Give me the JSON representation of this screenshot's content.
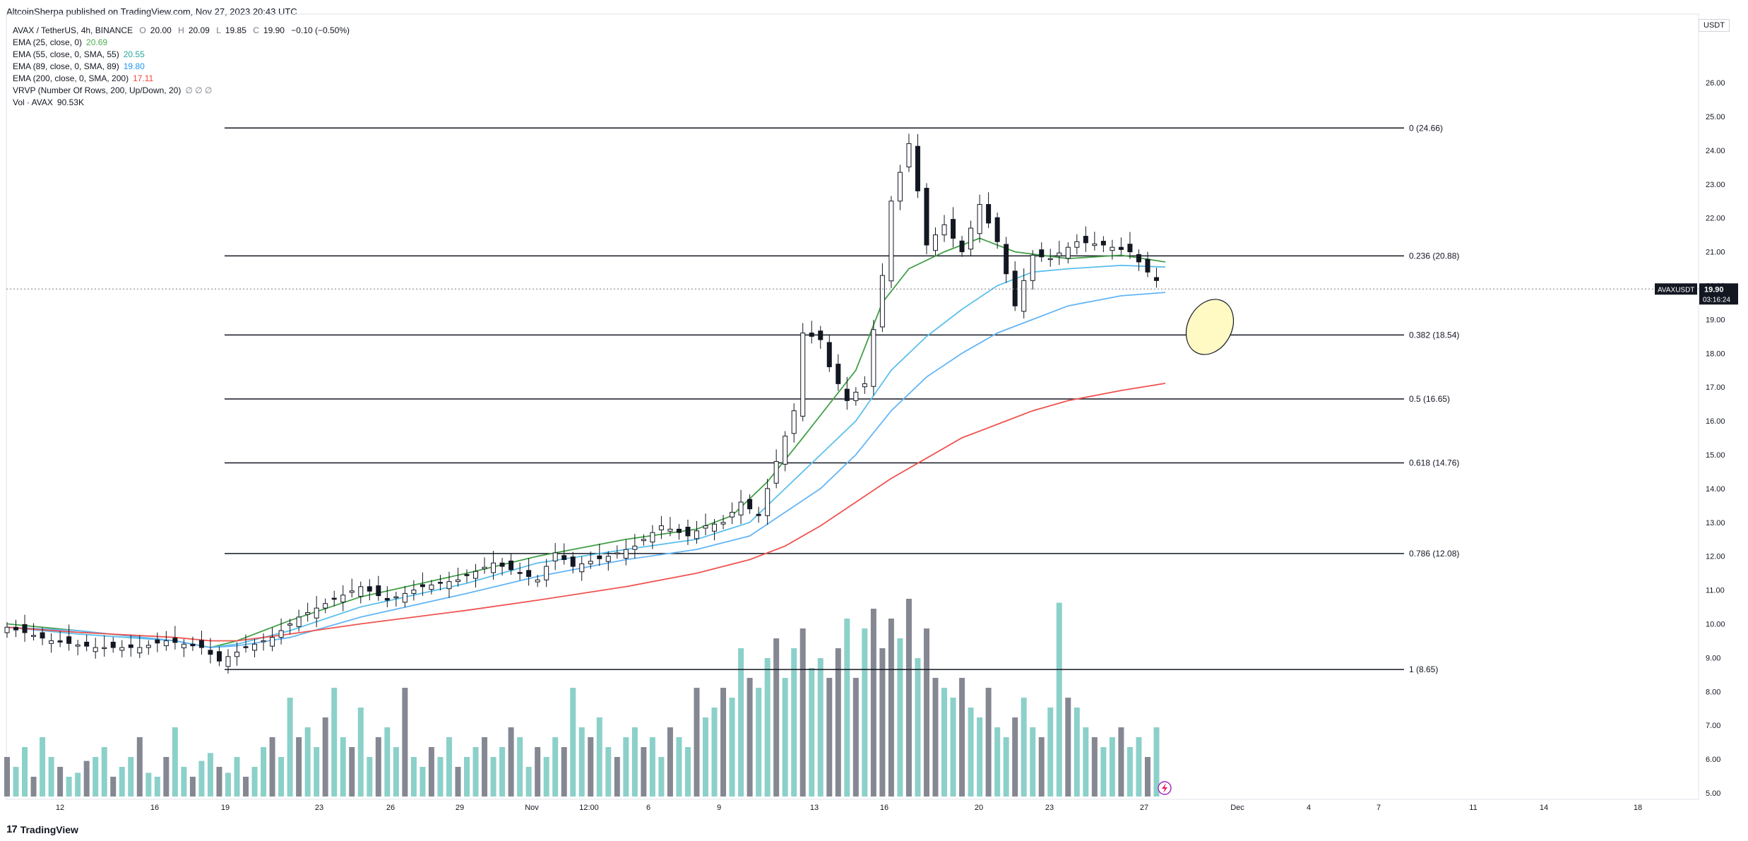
{
  "header": {
    "publisher_line": "AltcoinSherpa published on TradingView.com, Nov 27, 2023 20:43 UTC"
  },
  "legend": {
    "symbol": "AVAX / TetherUS, 4h, BINANCE",
    "ohlc": {
      "o_label": "O",
      "o": "20.00",
      "h_label": "H",
      "h": "20.09",
      "l_label": "L",
      "l": "19.85",
      "c_label": "C",
      "c": "19.90",
      "change": "−0.10 (−0.50%)"
    },
    "indicators": [
      {
        "label": "EMA (25, close, 0)",
        "value": "20.69",
        "color": "#4caf50"
      },
      {
        "label": "EMA (55, close, 0, SMA, 55)",
        "value": "20.55",
        "color": "#26a69a"
      },
      {
        "label": "EMA (89, close, 0, SMA, 89)",
        "value": "19.80",
        "color": "#2196f3"
      },
      {
        "label": "EMA (200, close, 0, SMA, 200)",
        "value": "17.11",
        "color": "#f44336"
      },
      {
        "label": "VRVP (Number Of Rows, 200, Up/Down, 20)",
        "value": "∅ ∅ ∅",
        "color": "#787b86"
      },
      {
        "label": "Vol · AVAX",
        "value": "90.53K",
        "color": "#131722"
      }
    ]
  },
  "quote_currency": "USDT",
  "price_tag": {
    "symbol": "AVAXUSDT",
    "price": "19.90",
    "countdown": "03:16:24"
  },
  "footer": {
    "brand": "TradingView",
    "logo_glyph": "17"
  },
  "colors": {
    "ema25": "#43a047",
    "ema55": "#5bc0eb",
    "ema89": "#64b5f6",
    "ema200": "#ef5350",
    "vol_up": "#80cbc4",
    "vol_down": "#787b86",
    "fib_line": "#131722",
    "ellipse_fill": "#fff9c4"
  },
  "chart_data": {
    "type": "candlestick",
    "y_axis": {
      "min": 5,
      "max": 26,
      "ticks": [
        "5.00",
        "6.00",
        "7.00",
        "8.00",
        "9.00",
        "10.00",
        "11.00",
        "12.00",
        "13.00",
        "14.00",
        "15.00",
        "16.00",
        "17.00",
        "18.00",
        "19.00",
        "20.00",
        "21.00",
        "22.00",
        "23.00",
        "24.00",
        "25.00",
        "26.00"
      ]
    },
    "x_axis": {
      "ticks": [
        "12",
        "16",
        "19",
        "23",
        "26",
        "29",
        "Nov",
        "12:00",
        "6",
        "9",
        "13",
        "16",
        "20",
        "23",
        "27",
        "Dec",
        "4",
        "7",
        "11",
        "14",
        "18"
      ]
    },
    "fib_levels": [
      {
        "ratio": "0",
        "price": 24.66,
        "label": "0 (24.66)"
      },
      {
        "ratio": "0.236",
        "price": 20.88,
        "label": "0.236 (20.88)"
      },
      {
        "ratio": "0.382",
        "price": 18.54,
        "label": "0.382 (18.54)"
      },
      {
        "ratio": "0.5",
        "price": 16.65,
        "label": "0.5 (16.65)"
      },
      {
        "ratio": "0.618",
        "price": 14.76,
        "label": "0.618 (14.76)"
      },
      {
        "ratio": "0.786",
        "price": 12.08,
        "label": "0.786 (12.08)"
      },
      {
        "ratio": "1",
        "price": 8.65,
        "label": "1 (8.65)"
      }
    ],
    "series": [
      {
        "name": "EMA (25, close, 0)",
        "points": [
          [
            0,
            10.0
          ],
          [
            8,
            9.8
          ],
          [
            19,
            9.5
          ],
          [
            23,
            9.3
          ],
          [
            26,
            9.5
          ],
          [
            32,
            10.1
          ],
          [
            40,
            10.8
          ],
          [
            52,
            11.5
          ],
          [
            60,
            12.0
          ],
          [
            70,
            12.5
          ],
          [
            78,
            12.8
          ],
          [
            82,
            13.2
          ],
          [
            86,
            14.2
          ],
          [
            90,
            15.5
          ],
          [
            93,
            16.5
          ],
          [
            96,
            17.5
          ],
          [
            99,
            19.5
          ],
          [
            102,
            20.5
          ],
          [
            106,
            21.0
          ],
          [
            110,
            21.4
          ],
          [
            114,
            21.0
          ],
          [
            120,
            20.8
          ],
          [
            126,
            20.9
          ],
          [
            131,
            20.7
          ]
        ]
      },
      {
        "name": "EMA (55, close, 0, SMA, 55)",
        "points": [
          [
            0,
            9.9
          ],
          [
            8,
            9.7
          ],
          [
            19,
            9.5
          ],
          [
            23,
            9.3
          ],
          [
            26,
            9.4
          ],
          [
            32,
            9.8
          ],
          [
            40,
            10.5
          ],
          [
            52,
            11.2
          ],
          [
            60,
            11.8
          ],
          [
            70,
            12.2
          ],
          [
            78,
            12.5
          ],
          [
            84,
            13.0
          ],
          [
            88,
            14.0
          ],
          [
            92,
            15.0
          ],
          [
            96,
            16.0
          ],
          [
            100,
            17.5
          ],
          [
            104,
            18.5
          ],
          [
            108,
            19.3
          ],
          [
            112,
            20.0
          ],
          [
            116,
            20.4
          ],
          [
            120,
            20.5
          ],
          [
            126,
            20.6
          ],
          [
            131,
            20.55
          ]
        ]
      },
      {
        "name": "EMA (89, close, 0, SMA, 89)",
        "points": [
          [
            0,
            9.9
          ],
          [
            8,
            9.8
          ],
          [
            19,
            9.5
          ],
          [
            23,
            9.3
          ],
          [
            26,
            9.35
          ],
          [
            32,
            9.6
          ],
          [
            40,
            10.2
          ],
          [
            52,
            10.9
          ],
          [
            60,
            11.4
          ],
          [
            70,
            11.9
          ],
          [
            78,
            12.2
          ],
          [
            84,
            12.6
          ],
          [
            88,
            13.3
          ],
          [
            92,
            14.0
          ],
          [
            96,
            15.0
          ],
          [
            100,
            16.3
          ],
          [
            104,
            17.3
          ],
          [
            108,
            18.0
          ],
          [
            112,
            18.6
          ],
          [
            116,
            19.0
          ],
          [
            120,
            19.4
          ],
          [
            126,
            19.7
          ],
          [
            131,
            19.8
          ]
        ]
      },
      {
        "name": "EMA (200, close, 0, SMA, 200)",
        "points": [
          [
            0,
            9.9
          ],
          [
            8,
            9.75
          ],
          [
            19,
            9.6
          ],
          [
            23,
            9.5
          ],
          [
            26,
            9.5
          ],
          [
            32,
            9.7
          ],
          [
            40,
            10.0
          ],
          [
            52,
            10.4
          ],
          [
            60,
            10.7
          ],
          [
            70,
            11.1
          ],
          [
            78,
            11.5
          ],
          [
            84,
            11.9
          ],
          [
            88,
            12.3
          ],
          [
            92,
            12.9
          ],
          [
            96,
            13.6
          ],
          [
            100,
            14.3
          ],
          [
            104,
            14.9
          ],
          [
            108,
            15.5
          ],
          [
            112,
            15.9
          ],
          [
            116,
            16.3
          ],
          [
            120,
            16.6
          ],
          [
            126,
            16.9
          ],
          [
            131,
            17.11
          ]
        ]
      }
    ],
    "candles_note": "~131 four-hour candles from Oct 10 to Nov 27, 2023",
    "price_path": [
      [
        0,
        9.9
      ],
      [
        5,
        9.5
      ],
      [
        10,
        9.3
      ],
      [
        15,
        9.3
      ],
      [
        18,
        9.5
      ],
      [
        22,
        9.3
      ],
      [
        24,
        8.9
      ],
      [
        27,
        9.3
      ],
      [
        30,
        9.6
      ],
      [
        33,
        10.2
      ],
      [
        36,
        10.6
      ],
      [
        40,
        11.1
      ],
      [
        43,
        10.7
      ],
      [
        47,
        11.1
      ],
      [
        51,
        11.3
      ],
      [
        55,
        11.8
      ],
      [
        58,
        11.5
      ],
      [
        60,
        11.3
      ],
      [
        62,
        12.1
      ],
      [
        64,
        11.7
      ],
      [
        68,
        12.0
      ],
      [
        71,
        12.3
      ],
      [
        74,
        12.9
      ],
      [
        77,
        12.6
      ],
      [
        79,
        12.9
      ],
      [
        81,
        13.0
      ],
      [
        83,
        13.6
      ],
      [
        85,
        13.2
      ],
      [
        87,
        14.8
      ],
      [
        89,
        16.3
      ],
      [
        90,
        18.6
      ],
      [
        92,
        18.4
      ],
      [
        93,
        17.6
      ],
      [
        95,
        16.6
      ],
      [
        97,
        17.1
      ],
      [
        99,
        20.3
      ],
      [
        100,
        22.5
      ],
      [
        102,
        24.2
      ],
      [
        103,
        22.8
      ],
      [
        104,
        21.2
      ],
      [
        106,
        21.8
      ],
      [
        108,
        21.0
      ],
      [
        110,
        22.4
      ],
      [
        112,
        21.3
      ],
      [
        114,
        19.4
      ],
      [
        116,
        20.9
      ],
      [
        118,
        20.8
      ],
      [
        121,
        21.3
      ],
      [
        124,
        21.2
      ],
      [
        127,
        21.0
      ],
      [
        129,
        20.4
      ],
      [
        131,
        19.9
      ]
    ],
    "volume_heights": [
      0.2,
      0.15,
      0.25,
      0.1,
      0.3,
      0.2,
      0.15,
      0.1,
      0.12,
      0.18,
      0.2,
      0.25,
      0.1,
      0.15,
      0.2,
      0.3,
      0.12,
      0.1,
      0.2,
      0.35,
      0.15,
      0.1,
      0.18,
      0.22,
      0.15,
      0.12,
      0.2,
      0.1,
      0.15,
      0.25,
      0.3,
      0.2,
      0.5,
      0.3,
      0.35,
      0.25,
      0.4,
      0.55,
      0.3,
      0.25,
      0.45,
      0.2,
      0.3,
      0.35,
      0.25,
      0.55,
      0.2,
      0.15,
      0.25,
      0.2,
      0.3,
      0.15,
      0.2,
      0.25,
      0.3,
      0.2,
      0.25,
      0.35,
      0.3,
      0.15,
      0.25,
      0.2,
      0.3,
      0.25,
      0.55,
      0.35,
      0.3,
      0.4,
      0.25,
      0.2,
      0.3,
      0.35,
      0.25,
      0.3,
      0.2,
      0.35,
      0.3,
      0.25,
      0.55,
      0.4,
      0.45,
      0.55,
      0.5,
      0.75,
      0.6,
      0.55,
      0.7,
      0.8,
      0.6,
      0.75,
      0.85,
      0.65,
      0.7,
      0.6,
      0.75,
      0.9,
      0.6,
      0.85,
      0.95,
      0.75,
      0.9,
      0.8,
      1.0,
      0.7,
      0.85,
      0.6,
      0.55,
      0.5,
      0.6,
      0.45,
      0.4,
      0.55,
      0.35,
      0.3,
      0.4,
      0.5,
      0.35,
      0.3,
      0.45,
      0.98,
      0.5,
      0.45,
      0.35,
      0.3,
      0.25,
      0.3,
      0.35,
      0.25,
      0.3,
      0.2,
      0.35
    ]
  }
}
